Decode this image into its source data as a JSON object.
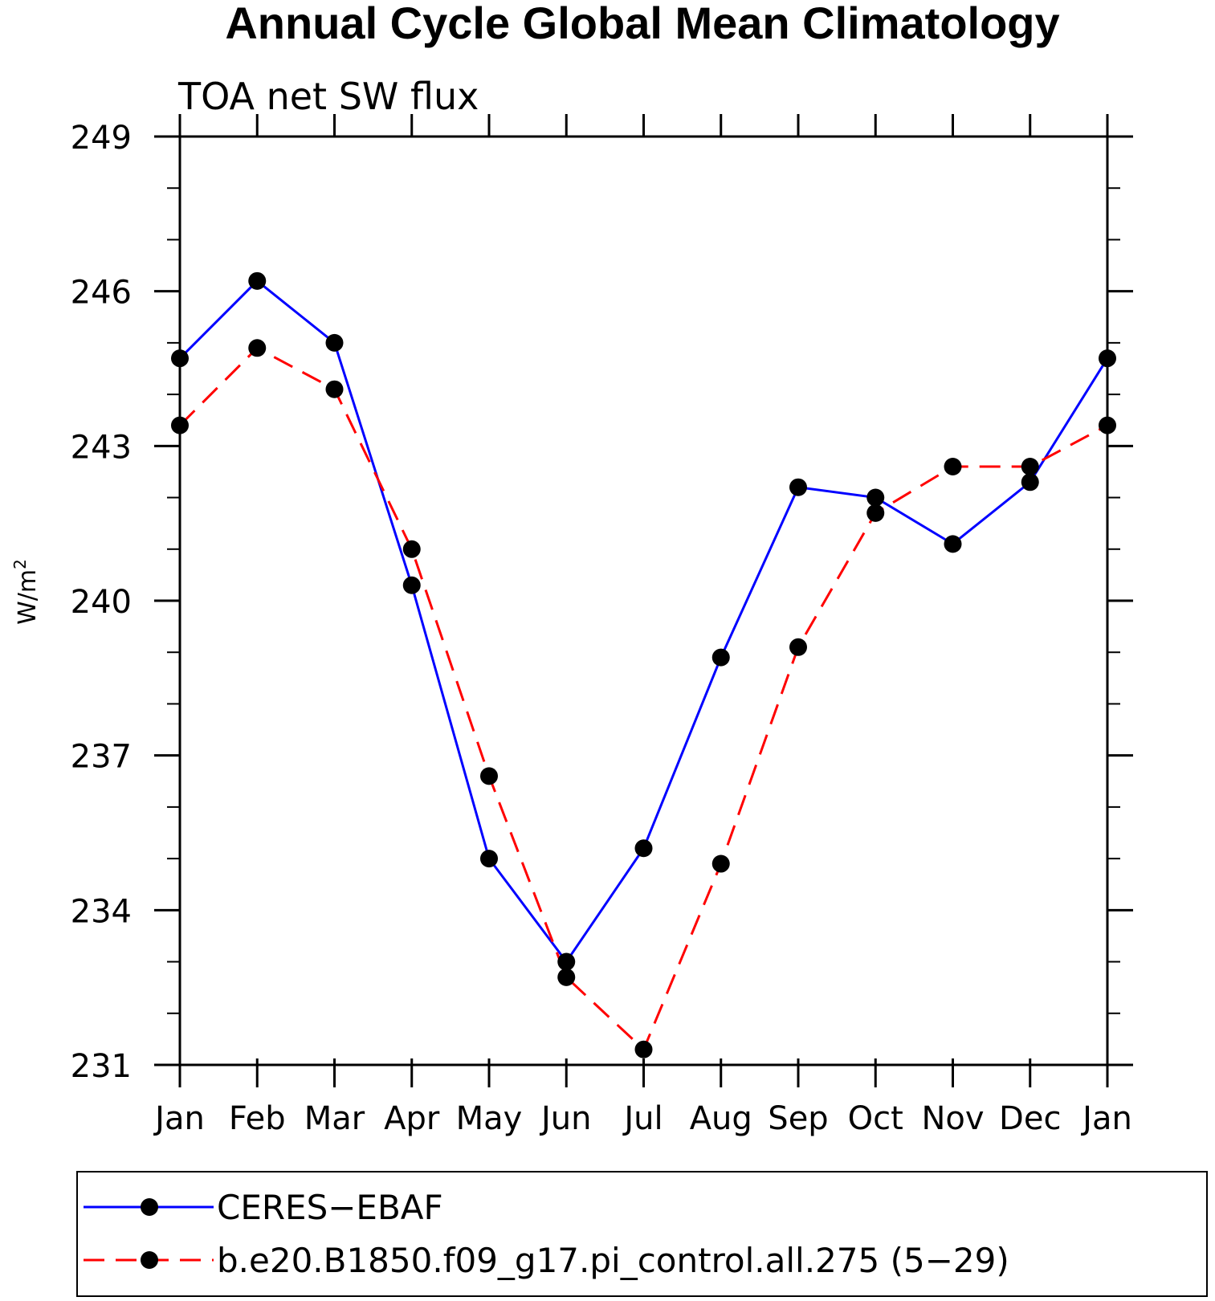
{
  "chart_data": {
    "type": "line",
    "title": "Annual Cycle Global Mean Climatology",
    "subtitle": "TOA net SW flux",
    "ylabel": "W/m",
    "ylabel_sup": "2",
    "xlabel": "",
    "categories": [
      "Jan",
      "Feb",
      "Mar",
      "Apr",
      "May",
      "Jun",
      "Jul",
      "Aug",
      "Sep",
      "Oct",
      "Nov",
      "Dec",
      "Jan"
    ],
    "ylim": [
      231,
      249
    ],
    "yticks": [
      231,
      234,
      237,
      240,
      243,
      246,
      249
    ],
    "grid": false,
    "legend_position": "bottom",
    "series": [
      {
        "name": "CERES−EBAF",
        "color": "#0000ff",
        "dash": "solid",
        "marker": "filled-circle",
        "values": [
          244.7,
          246.2,
          245.0,
          240.3,
          235.0,
          233.0,
          235.2,
          238.9,
          242.2,
          242.0,
          241.1,
          242.3,
          244.7
        ]
      },
      {
        "name": "b.e20.B1850.f09_g17.pi_control.all.275 (5−29)",
        "color": "#ff0000",
        "dash": "dashed",
        "marker": "filled-circle",
        "values": [
          243.4,
          244.9,
          244.1,
          241.0,
          236.6,
          232.7,
          231.3,
          234.9,
          239.1,
          241.7,
          242.6,
          242.6,
          243.4
        ]
      }
    ]
  }
}
